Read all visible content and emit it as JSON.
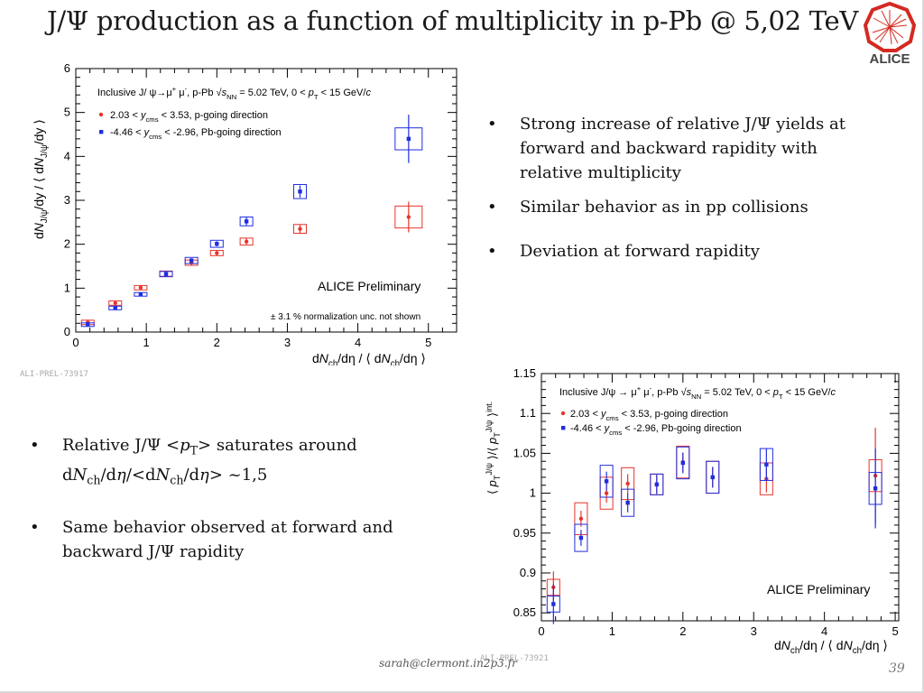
{
  "slide": {
    "title": "J/Ψ production as a function of multiplicity in p-Pb @ 5,02 TeV",
    "logo_text": "ALICE",
    "footer_email": "sarah@clermont.in2p3.fr",
    "page_number": "39"
  },
  "bullets_right": [
    "Strong increase of relative J/Ψ yields at forward and backward rapidity with relative multiplicity",
    "Similar behavior as in pp collisions",
    "Deviation at forward rapidity"
  ],
  "bullets_left": {
    "item1": {
      "a": "Relative J/Ψ <",
      "p": "p",
      "t": "T",
      "b": "> saturates around",
      "c": "d",
      "n1": "N",
      "ch1": "ch",
      "d": "/d",
      "eta1": "η",
      "e": "/<d",
      "n2": "N",
      "ch2": "ch",
      "f": "/d",
      "eta2": "η",
      "g": "> ~1,5"
    },
    "item2": "Same behavior observed at forward and backward J/Ψ rapidity"
  },
  "colors": {
    "red": "#e8332a",
    "blue": "#1f2ee0",
    "axis": "#000000",
    "tag": "#a9a9a9"
  },
  "chart_data": [
    {
      "type": "scatter",
      "tag": "ALI-PREL-73917",
      "header": "Inclusive J/ψ→μ⁺μ⁻, p-Pb  √s_NN = 5.02 TeV, 0 < p_T < 15 GeV/c",
      "ylabel": "dN_J/ψ/dy / ⟨dN_J/ψ/dy⟩",
      "xlabel": "dN_ch/dη / ⟨dN_ch/dη⟩",
      "xlim": [
        0,
        5.4
      ],
      "ylim": [
        0,
        6
      ],
      "xticks": [
        0,
        1,
        2,
        3,
        4,
        5
      ],
      "yticks": [
        0,
        1,
        2,
        3,
        4,
        5,
        6
      ],
      "annotations": [
        "ALICE Preliminary",
        "± 3.1 % normalization unc. not shown"
      ],
      "series": [
        {
          "name": "2.03 < y_cms < 3.53, p-going direction",
          "color": "red",
          "x": [
            0.17,
            0.56,
            0.92,
            1.28,
            1.64,
            2.0,
            2.42,
            3.18,
            4.72
          ],
          "y": [
            0.22,
            0.66,
            1.01,
            1.33,
            1.58,
            1.8,
            2.06,
            2.35,
            2.62
          ],
          "stat": [
            0.02,
            0.03,
            0.03,
            0.04,
            0.05,
            0.05,
            0.07,
            0.1,
            0.35
          ],
          "syst_box": [
            0.05,
            0.05,
            0.05,
            0.06,
            0.06,
            0.06,
            0.08,
            0.1,
            0.25
          ]
        },
        {
          "name": "-4.46 < y_cms < -2.96, Pb-going direction",
          "color": "blue",
          "x": [
            0.17,
            0.56,
            0.92,
            1.28,
            1.64,
            2.0,
            2.42,
            3.18,
            4.72
          ],
          "y": [
            0.18,
            0.55,
            0.86,
            1.32,
            1.63,
            2.01,
            2.52,
            3.2,
            4.4
          ],
          "stat": [
            0.02,
            0.03,
            0.03,
            0.04,
            0.05,
            0.06,
            0.09,
            0.14,
            0.55
          ],
          "syst_box": [
            0.03,
            0.04,
            0.04,
            0.06,
            0.07,
            0.08,
            0.1,
            0.16,
            0.25
          ]
        }
      ]
    },
    {
      "type": "scatter",
      "tag": "ALI-PREL-73921",
      "header": "Inclusive J/ψ → μ⁺μ⁻, p-Pb  √s_NN = 5.02 TeV, 0 < p_T < 15 GeV/c",
      "ylabel": "⟨p_T^J/ψ⟩/⟨p_T^J/ψ⟩_int.",
      "xlabel": "dN_ch/dη / ⟨dN_ch/dη⟩",
      "xlim": [
        0,
        5.05
      ],
      "ylim": [
        0.84,
        1.15
      ],
      "xticks": [
        0,
        1,
        2,
        3,
        4,
        5
      ],
      "yticks": [
        0.85,
        0.9,
        0.95,
        1,
        1.05,
        1.1,
        1.15
      ],
      "annotations": [
        "ALICE Preliminary"
      ],
      "series": [
        {
          "name": "2.03 < y_cms < 3.53, p-going direction",
          "color": "red",
          "x": [
            0.17,
            0.56,
            0.92,
            1.22,
            1.63,
            2.0,
            2.42,
            3.18,
            4.72
          ],
          "y": [
            0.882,
            0.968,
            1.0,
            1.012,
            1.011,
            1.039,
            1.02,
            1.018,
            1.022
          ],
          "stat": [
            0.02,
            0.01,
            0.012,
            0.012,
            0.012,
            0.012,
            0.013,
            0.017,
            0.06
          ],
          "syst_box": [
            0.01,
            0.02,
            0.02,
            0.02,
            0.013,
            0.02,
            0.02,
            0.02,
            0.02
          ]
        },
        {
          "name": "-4.46 < y_cms < -2.96, Pb-going direction",
          "color": "blue",
          "x": [
            0.17,
            0.56,
            0.92,
            1.22,
            1.63,
            2.0,
            2.42,
            3.18,
            4.72
          ],
          "y": [
            0.861,
            0.944,
            1.015,
            0.988,
            1.011,
            1.038,
            1.02,
            1.036,
            1.006
          ],
          "stat": [
            0.025,
            0.01,
            0.012,
            0.012,
            0.012,
            0.013,
            0.013,
            0.02,
            0.05
          ],
          "syst_box": [
            0.01,
            0.017,
            0.02,
            0.017,
            0.013,
            0.02,
            0.02,
            0.02,
            0.02
          ]
        }
      ]
    }
  ]
}
